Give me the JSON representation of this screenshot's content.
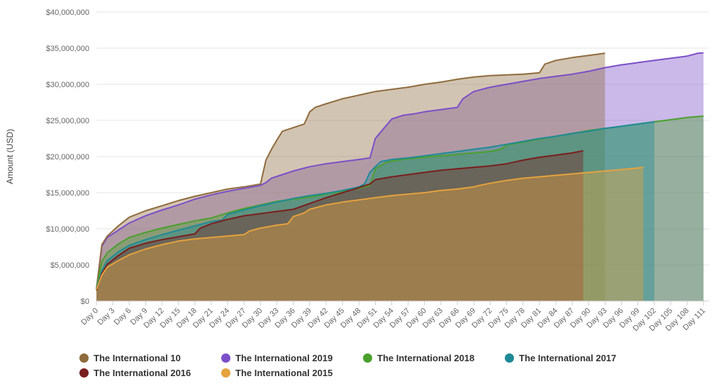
{
  "chart_data": {
    "type": "area",
    "ylabel": "Amount (USD)",
    "xlabel": "",
    "title": "",
    "ylim": [
      0,
      40000000
    ],
    "xlim": [
      0,
      112
    ],
    "y_ticks": [
      0,
      5000000,
      10000000,
      15000000,
      20000000,
      25000000,
      30000000,
      35000000,
      40000000
    ],
    "y_tick_labels": [
      "$0",
      "$5,000,000",
      "$10,000,000",
      "$15,000,000",
      "$20,000,000",
      "$25,000,000",
      "$30,000,000",
      "$35,000,000",
      "$40,000,000"
    ],
    "x_ticks": [
      0,
      3,
      6,
      9,
      12,
      15,
      18,
      21,
      24,
      27,
      30,
      33,
      36,
      39,
      42,
      45,
      48,
      51,
      54,
      57,
      60,
      63,
      66,
      69,
      72,
      75,
      78,
      81,
      84,
      87,
      90,
      93,
      96,
      99,
      102,
      105,
      108,
      111
    ],
    "x_tick_labels": [
      "Day 0",
      "Day 3",
      "Day 6",
      "Day 9",
      "Day 12",
      "Day 15",
      "Day 18",
      "Day 21",
      "Day 24",
      "Day 27",
      "Day 30",
      "Day 33",
      "Day 36",
      "Day 39",
      "Day 42",
      "Day 45",
      "Day 48",
      "Day 51",
      "Day 54",
      "Day 57",
      "Day 60",
      "Day 63",
      "Day 66",
      "Day 69",
      "Day 72",
      "Day 75",
      "Day 78",
      "Day 81",
      "Day 84",
      "Day 87",
      "Day 90",
      "Day 93",
      "Day 96",
      "Day 99",
      "Day 102",
      "Day 105",
      "Day 108",
      "Day 111"
    ],
    "grid": true,
    "legend_position": "bottom",
    "series": [
      {
        "name": "The International 2019",
        "color": "#7b4fc8",
        "x": [
          0,
          1,
          2,
          4,
          6,
          9,
          12,
          15,
          18,
          21,
          24,
          27,
          30,
          31,
          32,
          34,
          36,
          39,
          42,
          45,
          48,
          50,
          51,
          52,
          54,
          56,
          58,
          60,
          63,
          66,
          67,
          69,
          72,
          75,
          78,
          81,
          84,
          87,
          90,
          93,
          96,
          99,
          102,
          105,
          108,
          110,
          111
        ],
        "y": [
          1700000,
          7600000,
          8800000,
          9800000,
          10800000,
          11800000,
          12600000,
          13300000,
          14100000,
          14700000,
          15200000,
          15600000,
          16000000,
          16400000,
          17000000,
          17500000,
          18000000,
          18600000,
          19000000,
          19300000,
          19600000,
          19800000,
          22500000,
          23400000,
          25200000,
          25700000,
          25900000,
          26200000,
          26500000,
          26800000,
          28000000,
          29000000,
          29600000,
          30000000,
          30400000,
          30800000,
          31100000,
          31400000,
          31800000,
          32300000,
          32700000,
          33000000,
          33300000,
          33600000,
          33900000,
          34300000,
          34350000
        ]
      },
      {
        "name": "The International 10",
        "color": "#8f6b3e",
        "x": [
          0,
          1,
          2,
          4,
          6,
          9,
          12,
          15,
          18,
          21,
          24,
          27,
          30,
          31,
          32,
          33,
          34,
          36,
          38,
          39,
          40,
          42,
          45,
          48,
          51,
          54,
          57,
          60,
          63,
          66,
          69,
          72,
          75,
          78,
          81,
          82,
          84,
          87,
          90,
          93
        ],
        "y": [
          1600000,
          7800000,
          9000000,
          10400000,
          11600000,
          12500000,
          13200000,
          13900000,
          14500000,
          15000000,
          15500000,
          15800000,
          16200000,
          19500000,
          21000000,
          22300000,
          23500000,
          24000000,
          24500000,
          26200000,
          26800000,
          27300000,
          28000000,
          28500000,
          29000000,
          29300000,
          29600000,
          30000000,
          30300000,
          30700000,
          31000000,
          31200000,
          31300000,
          31400000,
          31600000,
          32800000,
          33300000,
          33700000,
          34000000,
          34300000
        ]
      },
      {
        "name": "The International 2018",
        "color": "#4aa02c",
        "x": [
          0,
          1,
          2,
          4,
          6,
          9,
          12,
          15,
          18,
          21,
          24,
          27,
          30,
          33,
          36,
          39,
          42,
          45,
          48,
          50,
          51,
          53,
          55,
          57,
          60,
          63,
          66,
          69,
          72,
          74,
          75,
          78,
          81,
          84,
          87,
          90,
          93,
          96,
          99,
          102,
          105,
          108,
          111
        ],
        "y": [
          1700000,
          5500000,
          6700000,
          7900000,
          8800000,
          9500000,
          10100000,
          10600000,
          11100000,
          11500000,
          12200000,
          12800000,
          13300000,
          13800000,
          14100000,
          14400000,
          14800000,
          15200000,
          15600000,
          16000000,
          18300000,
          19200000,
          19500000,
          19700000,
          19900000,
          20100000,
          20300000,
          20500000,
          20700000,
          21000000,
          21600000,
          22000000,
          22400000,
          22800000,
          23200000,
          23600000,
          23900000,
          24200000,
          24500000,
          24800000,
          25100000,
          25400000,
          25600000
        ]
      },
      {
        "name": "The International 2017",
        "color": "#1f8a96",
        "x": [
          0,
          1,
          2,
          4,
          6,
          9,
          12,
          15,
          18,
          21,
          23,
          24,
          27,
          30,
          33,
          36,
          39,
          42,
          45,
          48,
          49,
          50,
          51,
          52,
          54,
          57,
          60,
          63,
          66,
          69,
          72,
          75,
          78,
          81,
          84,
          87,
          90,
          93,
          96,
          99,
          102
        ],
        "y": [
          1600000,
          4200000,
          5600000,
          6800000,
          7700000,
          8500000,
          9200000,
          9800000,
          10400000,
          11000000,
          11200000,
          12000000,
          12600000,
          13200000,
          13700000,
          14200000,
          14600000,
          14900000,
          15300000,
          15800000,
          16200000,
          17800000,
          18600000,
          19300000,
          19600000,
          19800000,
          20100000,
          20400000,
          20700000,
          21000000,
          21300000,
          21700000,
          22100000,
          22500000,
          22800000,
          23200000,
          23500000,
          23900000,
          24200000,
          24500000,
          24800000
        ]
      },
      {
        "name": "The International 2016",
        "color": "#7a1f1f",
        "x": [
          0,
          1,
          2,
          4,
          6,
          9,
          12,
          15,
          18,
          19,
          21,
          24,
          27,
          30,
          33,
          36,
          39,
          42,
          45,
          48,
          50,
          51,
          54,
          57,
          60,
          63,
          66,
          69,
          72,
          75,
          78,
          81,
          84,
          87,
          89
        ],
        "y": [
          1500000,
          3800000,
          5100000,
          6300000,
          7300000,
          8000000,
          8500000,
          8900000,
          9300000,
          10100000,
          10700000,
          11300000,
          11800000,
          12100000,
          12400000,
          12700000,
          13500000,
          14300000,
          15000000,
          15700000,
          16200000,
          16800000,
          17200000,
          17500000,
          17800000,
          18100000,
          18300000,
          18500000,
          18700000,
          19000000,
          19500000,
          19900000,
          20200000,
          20500000,
          20800000
        ]
      },
      {
        "name": "The International 2015",
        "color": "#e5a23d",
        "x": [
          0,
          1,
          2,
          4,
          6,
          9,
          12,
          15,
          18,
          21,
          24,
          27,
          28,
          30,
          33,
          35,
          36,
          38,
          39,
          42,
          45,
          48,
          51,
          54,
          57,
          60,
          63,
          66,
          69,
          70,
          72,
          75,
          78,
          81,
          84,
          87,
          90,
          93,
          96,
          99,
          100
        ],
        "y": [
          1600000,
          3600000,
          4700000,
          5600000,
          6400000,
          7200000,
          7800000,
          8300000,
          8600000,
          8800000,
          9000000,
          9200000,
          9700000,
          10100000,
          10500000,
          10700000,
          11700000,
          12200000,
          12700000,
          13300000,
          13700000,
          14000000,
          14300000,
          14600000,
          14800000,
          15000000,
          15300000,
          15500000,
          15800000,
          16000000,
          16300000,
          16700000,
          17000000,
          17200000,
          17400000,
          17600000,
          17800000,
          18000000,
          18200000,
          18400000,
          18500000
        ]
      }
    ]
  },
  "legend": [
    {
      "label": "The International 10",
      "color": "#8f6b3e"
    },
    {
      "label": "The International 2019",
      "color": "#7b4fc8"
    },
    {
      "label": "The International 2018",
      "color": "#4aa02c"
    },
    {
      "label": "The International 2017",
      "color": "#1f8a96"
    },
    {
      "label": "The International 2016",
      "color": "#7a1f1f"
    },
    {
      "label": "The International 2015",
      "color": "#e5a23d"
    }
  ]
}
